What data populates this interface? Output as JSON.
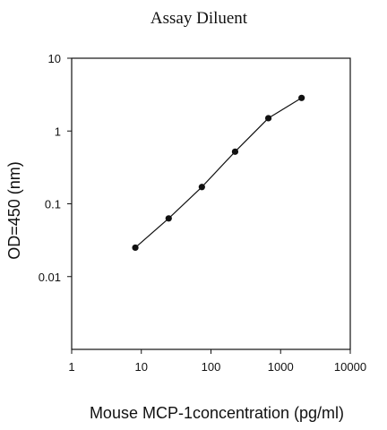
{
  "chart_data": {
    "type": "line",
    "title": "Assay Diluent",
    "xlabel": "Mouse MCP-1concentration (pg/ml)",
    "ylabel": "OD=450 (nm)",
    "x_scale": "log",
    "y_scale": "log",
    "xlim": [
      1,
      10000
    ],
    "ylim": [
      0.001,
      10
    ],
    "x_ticks": [
      "1",
      "10",
      "100",
      "1000",
      "10000"
    ],
    "y_ticks": [
      "0.01",
      "0.1",
      "1",
      "10"
    ],
    "grid": false,
    "series": [
      {
        "x": [
          8.2,
          24.7,
          74,
          222,
          667,
          2000
        ],
        "y": [
          0.025,
          0.063,
          0.17,
          0.52,
          1.5,
          2.85
        ]
      }
    ],
    "line_color": "#111111",
    "marker": "filled-circle"
  }
}
